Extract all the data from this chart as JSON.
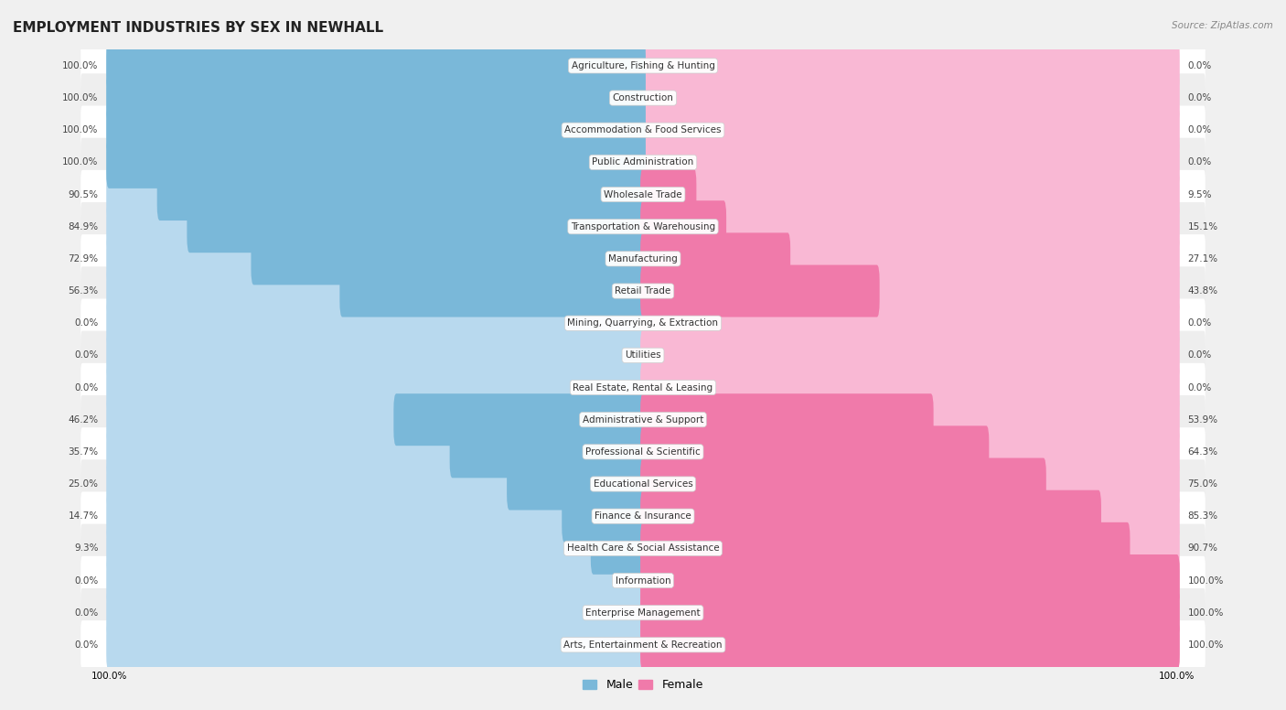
{
  "title": "EMPLOYMENT INDUSTRIES BY SEX IN NEWHALL",
  "source": "Source: ZipAtlas.com",
  "categories": [
    "Agriculture, Fishing & Hunting",
    "Construction",
    "Accommodation & Food Services",
    "Public Administration",
    "Wholesale Trade",
    "Transportation & Warehousing",
    "Manufacturing",
    "Retail Trade",
    "Mining, Quarrying, & Extraction",
    "Utilities",
    "Real Estate, Rental & Leasing",
    "Administrative & Support",
    "Professional & Scientific",
    "Educational Services",
    "Finance & Insurance",
    "Health Care & Social Assistance",
    "Information",
    "Enterprise Management",
    "Arts, Entertainment & Recreation"
  ],
  "male": [
    100.0,
    100.0,
    100.0,
    100.0,
    90.5,
    84.9,
    72.9,
    56.3,
    0.0,
    0.0,
    0.0,
    46.2,
    35.7,
    25.0,
    14.7,
    9.3,
    0.0,
    0.0,
    0.0
  ],
  "female": [
    0.0,
    0.0,
    0.0,
    0.0,
    9.5,
    15.1,
    27.1,
    43.8,
    0.0,
    0.0,
    0.0,
    53.9,
    64.3,
    75.0,
    85.3,
    90.7,
    100.0,
    100.0,
    100.0
  ],
  "male_color": "#7ab8d9",
  "female_color": "#f07aaa",
  "male_bg_color": "#b8d9ee",
  "female_bg_color": "#f9b8d4",
  "row_color_even": "#ffffff",
  "row_color_odd": "#eeeeee",
  "bg_color": "#f0f0f0",
  "title_fontsize": 11,
  "label_fontsize": 7.5,
  "value_fontsize": 7.5,
  "legend_fontsize": 9
}
